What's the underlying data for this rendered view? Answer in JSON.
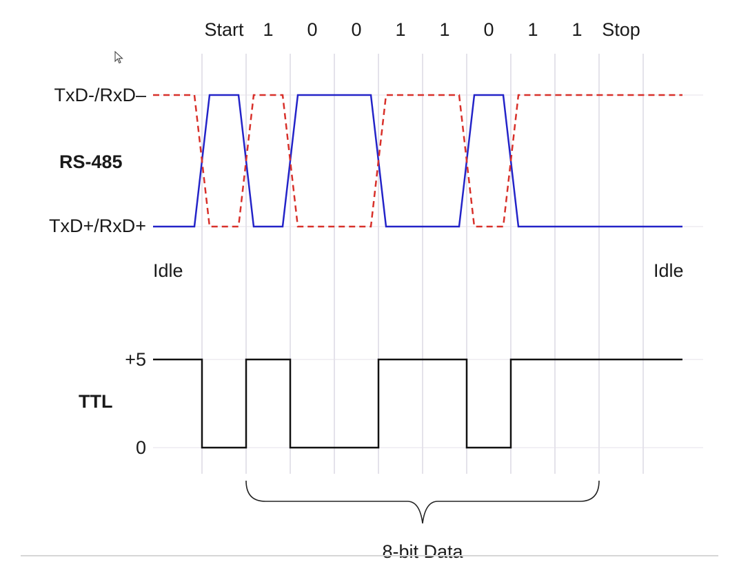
{
  "diagram": {
    "bit_labels": [
      "Start",
      "1",
      "0",
      "0",
      "1",
      "1",
      "0",
      "1",
      "1",
      "Stop"
    ],
    "rs485": {
      "section_label": "RS-485",
      "top_line_label": "TxD-/RxD–",
      "bottom_line_label": "TxD+/RxD+",
      "idle_left_label": "Idle",
      "idle_right_label": "Idle",
      "solid_color": "#2323c8",
      "dashed_color": "#d8302a"
    },
    "ttl": {
      "section_label": "TTL",
      "high_label": "+5",
      "low_label": "0",
      "line_color": "#111111"
    },
    "brace_label": "8-bit Data",
    "grid_color": "#c9c4d4",
    "levels": [
      "idle",
      "low",
      "high",
      "low",
      "low",
      "high",
      "high",
      "low",
      "high",
      "high",
      "idle"
    ]
  }
}
